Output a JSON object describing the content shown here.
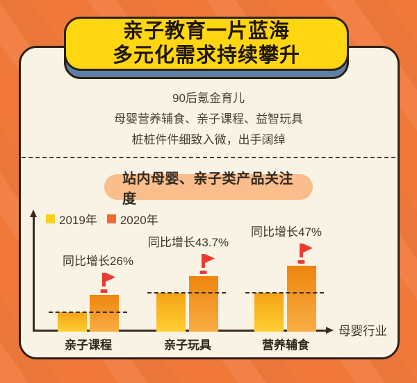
{
  "title": {
    "line1": "亲子教育一片蓝海",
    "line2": "多元化需求持续攀升"
  },
  "intro": {
    "lines": [
      "90后氪金育儿",
      "母婴营养辅食、亲子课程、益智玩具",
      "桩桩件件细致入微，出手阔绰"
    ]
  },
  "section_pill": {
    "label": "站内母婴、亲子类产品关注度"
  },
  "chart_data": {
    "type": "bar",
    "title": "站内母婴、亲子类产品关注度",
    "categories": [
      "亲子课程",
      "亲子玩具",
      "营养辅食"
    ],
    "series": [
      {
        "name": "2019年",
        "color": "#F8CF1F",
        "values": [
          28,
          56,
          56
        ]
      },
      {
        "name": "2020年",
        "color": "#F2692F",
        "values": [
          53,
          80,
          95
        ]
      }
    ],
    "annotations": [
      "同比增长26%",
      "同比增长43.7%",
      "同比增长47%"
    ],
    "xlabel": "母婴行业",
    "ylabel": "",
    "legend_position": "top-left",
    "grid": false,
    "note": "values are relative attention-index bar heights estimated from the figure; labeled growth rates are 26%, 43.7%, 47%"
  },
  "colors": {
    "background": "#F0793A",
    "card": "#F8F3E5",
    "title_bg": "#FFD60F",
    "title_shadow": "#5D80A6",
    "pill_bg": "#F9BE8C",
    "flag_red": "#E93B30",
    "bar_2019_top": "#F4A315",
    "bar_2019_bottom": "#FFCE33",
    "bar_2020_top": "#EE850E",
    "bar_2020_bottom": "#F9AD43"
  }
}
